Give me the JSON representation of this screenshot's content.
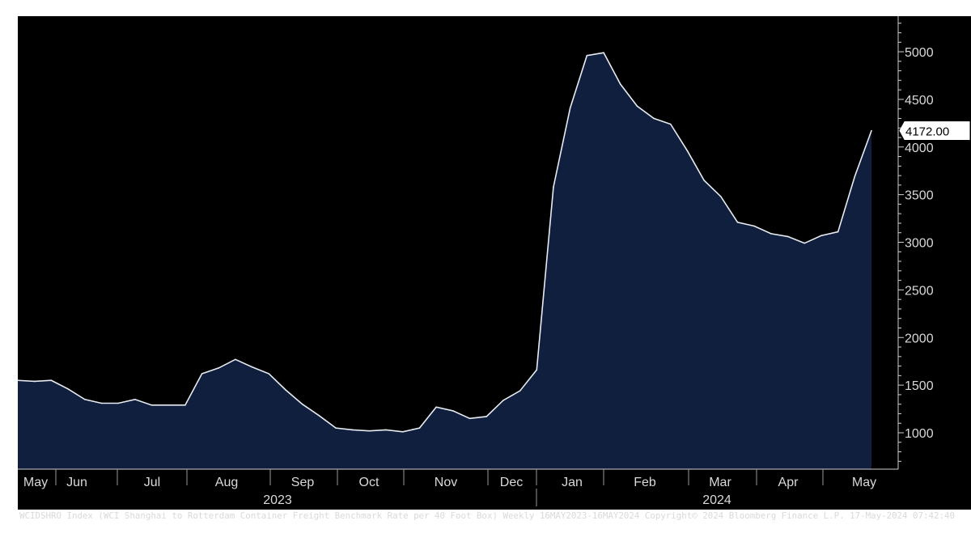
{
  "chart_data": {
    "type": "area",
    "title": "",
    "xlabel": "",
    "ylabel": "",
    "ylim": [
      600,
      5350
    ],
    "y_ticks": [
      1000,
      1500,
      2000,
      2500,
      3000,
      3500,
      4000,
      4500,
      5000
    ],
    "y_tick_labels": [
      "1000",
      "1500",
      "2000",
      "2500",
      "3000",
      "3500",
      "4000",
      "4500",
      "5000"
    ],
    "month_labels": [
      "May",
      "Jun",
      "Jul",
      "Aug",
      "Sep",
      "Oct",
      "Nov",
      "Dec",
      "Jan",
      "Feb",
      "Mar",
      "Apr",
      "May"
    ],
    "year_labels": [
      "2023",
      "2024"
    ],
    "last_value_label": "4172.00",
    "grid": false,
    "series": [
      {
        "values": [
          1550,
          1540,
          1550,
          1460,
          1350,
          1310,
          1310,
          1350,
          1290,
          1290,
          1290,
          1620,
          1680,
          1770,
          1690,
          1620,
          1450,
          1300,
          1180,
          1050,
          1030,
          1020,
          1030,
          1010,
          1050,
          1270,
          1230,
          1150,
          1170,
          1340,
          1440,
          1660,
          3580,
          4410,
          4960,
          4990,
          4660,
          4430,
          4300,
          4240,
          3960,
          3650,
          3480,
          3210,
          3170,
          3090,
          3060,
          2990,
          3070,
          3110,
          3690,
          4172
        ]
      }
    ],
    "colors": {
      "background": "#000000",
      "area_fill": "#101f3e",
      "line": "#e8ecf2",
      "axis_text": "#d9d9d9",
      "outer_background": "#ffffff"
    }
  },
  "footer": {
    "text": "WCIDSHRO Index (WCI Shanghai to Rotterdam Container Freight Benchmark Rate per 40 Foot Box) Weekly 16MAY2023-16MAY2024 Copyright© 2024 Bloomberg Finance L.P. 17-May-2024 07:42:40"
  }
}
